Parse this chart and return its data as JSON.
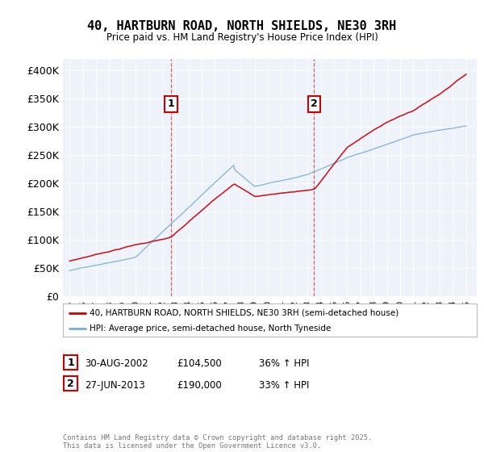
{
  "title": "40, HARTBURN ROAD, NORTH SHIELDS, NE30 3RH",
  "subtitle": "Price paid vs. HM Land Registry's House Price Index (HPI)",
  "legend_line1": "40, HARTBURN ROAD, NORTH SHIELDS, NE30 3RH (semi-detached house)",
  "legend_line2": "HPI: Average price, semi-detached house, North Tyneside",
  "sale1_label": "1",
  "sale1_date": "30-AUG-2002",
  "sale1_price": 104500,
  "sale1_hpi": "36% ↑ HPI",
  "sale1_year": 2002.667,
  "sale2_label": "2",
  "sale2_date": "27-JUN-2013",
  "sale2_price": 190000,
  "sale2_hpi": "33% ↑ HPI",
  "sale2_year": 2013.5,
  "footer": "Contains HM Land Registry data © Crown copyright and database right 2025.\nThis data is licensed under the Open Government Licence v3.0.",
  "red_color": "#cc0000",
  "blue_color": "#7aaed6",
  "background_color": "#eef2fb",
  "vline_color": "#cc0000",
  "ylim_max": 420000,
  "xlim_min": 1994.5,
  "xlim_max": 2025.8,
  "xlabel_fontsize": 7.5,
  "ylabel_fontsize": 9,
  "years": [
    1995,
    1996,
    1997,
    1998,
    1999,
    2000,
    2001,
    2002,
    2003,
    2004,
    2005,
    2006,
    2007,
    2008,
    2009,
    2010,
    2011,
    2012,
    2013,
    2014,
    2015,
    2016,
    2017,
    2018,
    2019,
    2020,
    2021,
    2022,
    2023,
    2024,
    2025
  ]
}
